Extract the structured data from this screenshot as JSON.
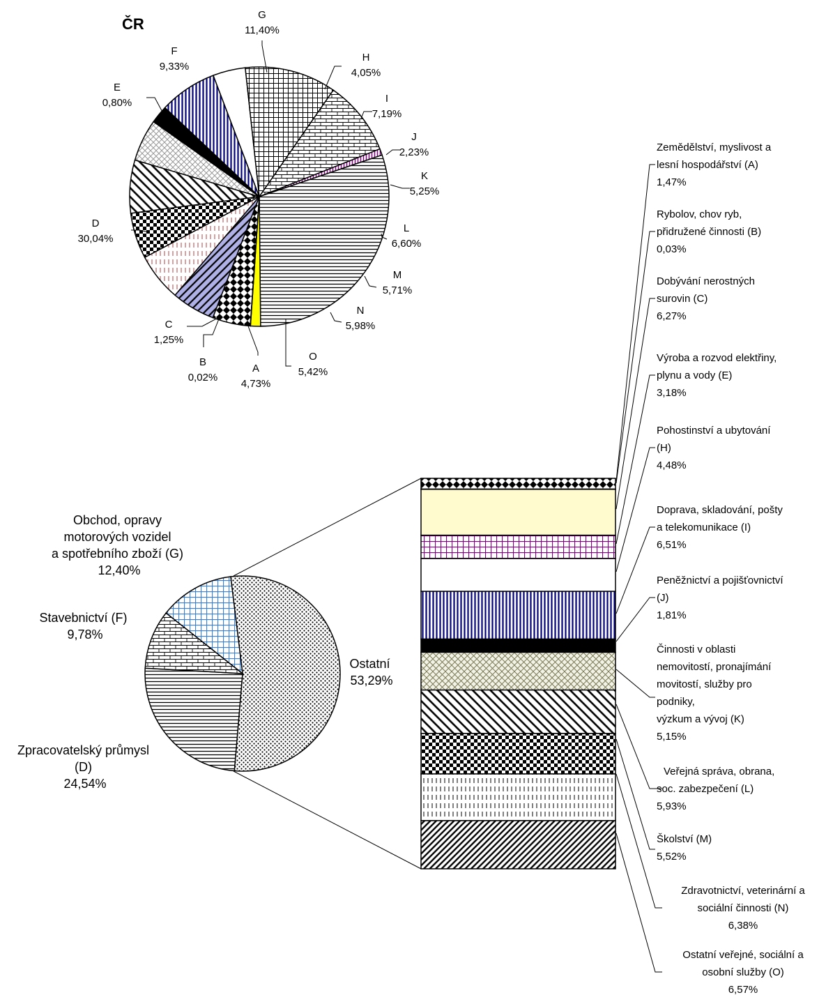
{
  "chart_data": [
    {
      "type": "pie",
      "title": "ČR",
      "slices": [
        {
          "label": "A",
          "value": 4.73,
          "value_text": "4,73%",
          "pattern": "diamonds",
          "color": "#000000"
        },
        {
          "label": "O",
          "value": 5.42,
          "value_text": "5,42%",
          "pattern": "diag-blue",
          "color": "#aeb0e6"
        },
        {
          "label": "N",
          "value": 5.98,
          "value_text": "5,98%",
          "pattern": "dash-red",
          "color": "#b04040"
        },
        {
          "label": "M",
          "value": 5.71,
          "value_text": "5,71%",
          "pattern": "checker",
          "color": "#000000"
        },
        {
          "label": "L",
          "value": 6.6,
          "value_text": "6,60%",
          "pattern": "diag-wide",
          "color": "#000000"
        },
        {
          "label": "K",
          "value": 5.25,
          "value_text": "5,25%",
          "pattern": "cross-gray",
          "color": "#aaaaaa"
        },
        {
          "label": "J",
          "value": 2.23,
          "value_text": "2,23%",
          "pattern": "black",
          "color": "#000000"
        },
        {
          "label": "I",
          "value": 7.19,
          "value_text": "7,19%",
          "pattern": "vert-navy",
          "color": "#000080"
        },
        {
          "label": "H",
          "value": 4.05,
          "value_text": "4,05%",
          "pattern": "white",
          "color": "#ffffff"
        },
        {
          "label": "G",
          "value": 11.4,
          "value_text": "11,40%",
          "pattern": "grid",
          "color": "#000000"
        },
        {
          "label": "F",
          "value": 9.33,
          "value_text": "9,33%",
          "pattern": "bricks",
          "color": "#000000"
        },
        {
          "label": "E",
          "value": 0.8,
          "value_text": "0,80%",
          "pattern": "vert-purple",
          "color": "#800080"
        },
        {
          "label": "D",
          "value": 30.04,
          "value_text": "30,04%",
          "pattern": "horiz",
          "color": "#000000"
        },
        {
          "label": "C",
          "value": 1.25,
          "value_text": "1,25%",
          "pattern": "yellow",
          "color": "#ffff00"
        },
        {
          "label": "B",
          "value": 0.02,
          "value_text": "0,02%",
          "pattern": "white",
          "color": "#ffffff"
        }
      ]
    },
    {
      "type": "bar-of-pie",
      "title": "",
      "pie_slices": [
        {
          "label": "Ostatní",
          "value": 53.29,
          "value_text": "53,29%",
          "pattern": "dots",
          "color": "#000000"
        },
        {
          "label": "Zpracovatelský průmysl (D)",
          "value": 24.54,
          "value_text": "24,54%",
          "pattern": "horiz",
          "color": "#000000"
        },
        {
          "label": "Stavebnictví (F)",
          "value": 9.78,
          "value_text": "9,78%",
          "pattern": "bricks",
          "color": "#000000"
        },
        {
          "label": "Obchod, opravy motorových vozidel a spotřebního zboží (G)",
          "value": 12.4,
          "value_text": "12,40%",
          "pattern": "grid-blue",
          "color": "#3a7fd5"
        }
      ],
      "stack_segments": [
        {
          "label": "Zemědělství, myslivost a lesní hospodářství (A)",
          "value": 1.47,
          "value_text": "1,47%",
          "pattern": "diamonds"
        },
        {
          "label": "Rybolov, chov ryb, přidružené činnosti (B)",
          "value": 0.03,
          "value_text": "0,03%",
          "pattern": "white"
        },
        {
          "label": "Dobývání nerostných surovin (C)",
          "value": 6.27,
          "value_text": "6,27%",
          "pattern": "cream"
        },
        {
          "label": "Výroba a rozvod elektřiny, plynu a vody (E)",
          "value": 3.18,
          "value_text": "3,18%",
          "pattern": "grid-purple"
        },
        {
          "label": "Pohostinství a ubytování (H)",
          "value": 4.48,
          "value_text": "4,48%",
          "pattern": "white"
        },
        {
          "label": "Doprava, skladování, pošty a telekomunikace (I)",
          "value": 6.51,
          "value_text": "6,51%",
          "pattern": "vert-navy"
        },
        {
          "label": "Peněžnictví a pojišťovnictví (J)",
          "value": 1.81,
          "value_text": "1,81%",
          "pattern": "black"
        },
        {
          "label": "Činnosti v oblasti nemovitostí, pronajímání movitostí, služby pro podniky, výzkum a vývoj (K)",
          "value": 5.15,
          "value_text": "5,15%",
          "pattern": "cross-olive"
        },
        {
          "label": "Veřejná správa, obrana, soc. zabezpečení (L)",
          "value": 5.93,
          "value_text": "5,93%",
          "pattern": "diag-wide"
        },
        {
          "label": "Školství (M)",
          "value": 5.52,
          "value_text": "5,52%",
          "pattern": "checker"
        },
        {
          "label": "Zdravotnictví, veterinární a sociální činnosti (N)",
          "value": 6.38,
          "value_text": "6,38%",
          "pattern": "dash-black"
        },
        {
          "label": "Ostatní veřejné, sociální a osobní služby (O)",
          "value": 6.57,
          "value_text": "6,57%",
          "pattern": "diag-dense"
        }
      ]
    }
  ],
  "labels": {
    "top_title": "ČR",
    "A": [
      "A",
      "4,73%"
    ],
    "B": [
      "B",
      "0,02%"
    ],
    "C": [
      "C",
      "1,25%"
    ],
    "D": [
      "D",
      "30,04%"
    ],
    "E": [
      "E",
      "0,80%"
    ],
    "F": [
      "F",
      "9,33%"
    ],
    "G": [
      "G",
      "11,40%"
    ],
    "H": [
      "H",
      "4,05%"
    ],
    "I": [
      "I",
      "7,19%"
    ],
    "J": [
      "J",
      "2,23%"
    ],
    "K": [
      "K",
      "5,25%"
    ],
    "L": [
      "L",
      "6,60%"
    ],
    "M": [
      "M",
      "5,71%"
    ],
    "N": [
      "N",
      "5,98%"
    ],
    "O": [
      "O",
      "5,42%"
    ],
    "ostatni": [
      "Ostatní",
      "53,29%"
    ],
    "g_big": [
      "Obchod, opravy",
      "motorových vozidel",
      "a spotřebního zboží (G)",
      "12,40%"
    ],
    "f_big": [
      "Stavebnictví (F)",
      "9,78%"
    ],
    "d_big": [
      "Zpracovatelský průmysl",
      "(D)",
      "24,54%"
    ],
    "seg_A": [
      "Zemědělství, myslivost a",
      "lesní hospodářství (A)",
      "1,47%"
    ],
    "seg_B": [
      "Rybolov, chov ryb,",
      "přidružené činnosti (B)",
      "0,03%"
    ],
    "seg_C": [
      "Dobývání nerostných",
      "surovin (C)",
      "6,27%"
    ],
    "seg_E": [
      "Výroba a rozvod elektřiny,",
      "plynu a vody (E)",
      "3,18%"
    ],
    "seg_H": [
      "Pohostinství a ubytování",
      "(H)",
      "4,48%"
    ],
    "seg_I": [
      "Doprava, skladování, pošty",
      "a telekomunikace (I)",
      "6,51%"
    ],
    "seg_J": [
      "Peněžnictví a pojišťovnictví",
      "(J)",
      "1,81%"
    ],
    "seg_K": [
      "Činnosti v oblasti",
      "nemovitostí, pronajímání",
      "movitostí, služby pro",
      "podniky,",
      "výzkum a vývoj (K)",
      "5,15%"
    ],
    "seg_L": [
      "Veřejná správa, obrana,",
      "soc. zabezpečení (L)",
      "5,93%"
    ],
    "seg_M": [
      "Školství (M)",
      "5,52%"
    ],
    "seg_N": [
      "Zdravotnictví, veterinární a",
      "sociální činnosti (N)",
      "6,38%"
    ],
    "seg_O": [
      "Ostatní veřejné, sociální  a",
      "osobní služby (O)",
      "6,57%"
    ]
  }
}
